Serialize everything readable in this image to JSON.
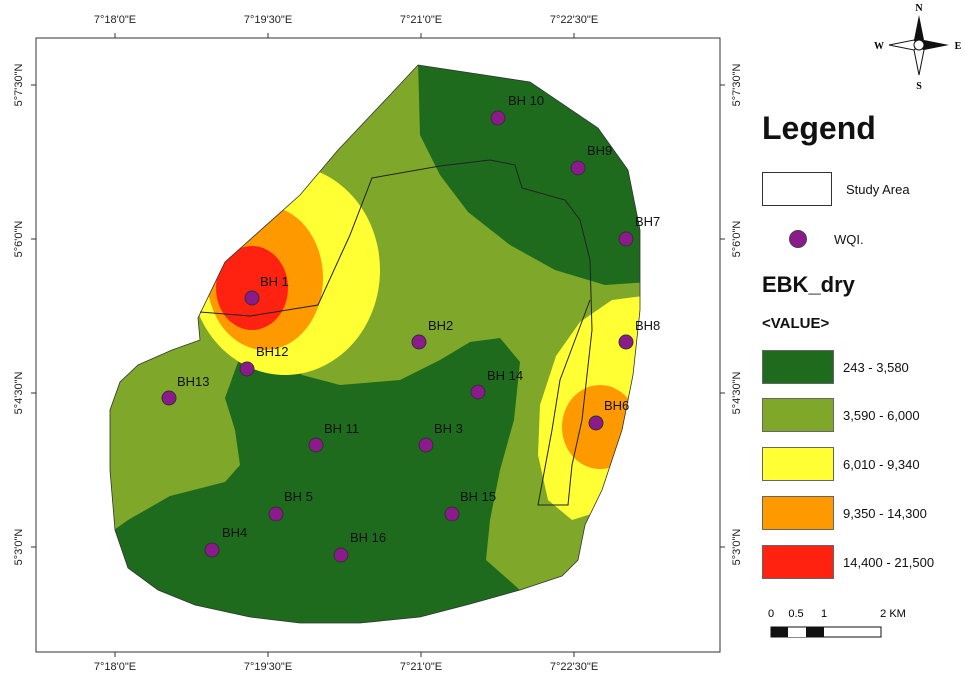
{
  "map": {
    "top_lon_labels": [
      "7°18'0\"E",
      "7°19'30\"E",
      "7°21'0\"E",
      "7°22'30\"E"
    ],
    "bottom_lon_labels": [
      "7°18'0\"E",
      "7°19'30\"E",
      "7°21'0\"E",
      "7°22'30\"E"
    ],
    "left_lat_labels": [
      "5°7'30\"N",
      "5°6'0\"N",
      "5°4'30\"N",
      "5°3'0\"N"
    ],
    "right_lat_labels": [
      "5°7'30\"N",
      "5°6'0\"N",
      "5°4'30\"N",
      "5°3'0\"N"
    ],
    "boreholes": [
      {
        "label": "BH 1"
      },
      {
        "label": "BH2"
      },
      {
        "label": "BH 3"
      },
      {
        "label": "BH4"
      },
      {
        "label": "BH 5"
      },
      {
        "label": "BH6"
      },
      {
        "label": "BH7"
      },
      {
        "label": "BH8"
      },
      {
        "label": "BH9"
      },
      {
        "label": "BH 10"
      },
      {
        "label": "BH 11"
      },
      {
        "label": "BH12"
      },
      {
        "label": "BH13"
      },
      {
        "label": "BH 14"
      },
      {
        "label": "BH 15"
      },
      {
        "label": "BH 16"
      }
    ]
  },
  "north_arrow": {
    "n": "N",
    "s": "S",
    "e": "E",
    "w": "W"
  },
  "legend": {
    "title": "Legend",
    "study_area_label": "Study Area",
    "wqi_label": "WQI.",
    "ebk_title": "EBK_dry",
    "value_title": "<VALUE>",
    "classes": [
      {
        "label": "243 - 3,580",
        "color": "#1e6b1e"
      },
      {
        "label": "3,590 - 6,000",
        "color": "#7fa82a"
      },
      {
        "label": "6,010 - 9,340",
        "color": "#ffff33"
      },
      {
        "label": "9,350 - 14,300",
        "color": "#ff9900"
      },
      {
        "label": "14,400 - 21,500",
        "color": "#ff2211"
      }
    ],
    "wqi_color": "#8b1a8b"
  },
  "scale_bar": {
    "ticks": [
      "0",
      "0.5",
      "1",
      "2 KM"
    ]
  }
}
